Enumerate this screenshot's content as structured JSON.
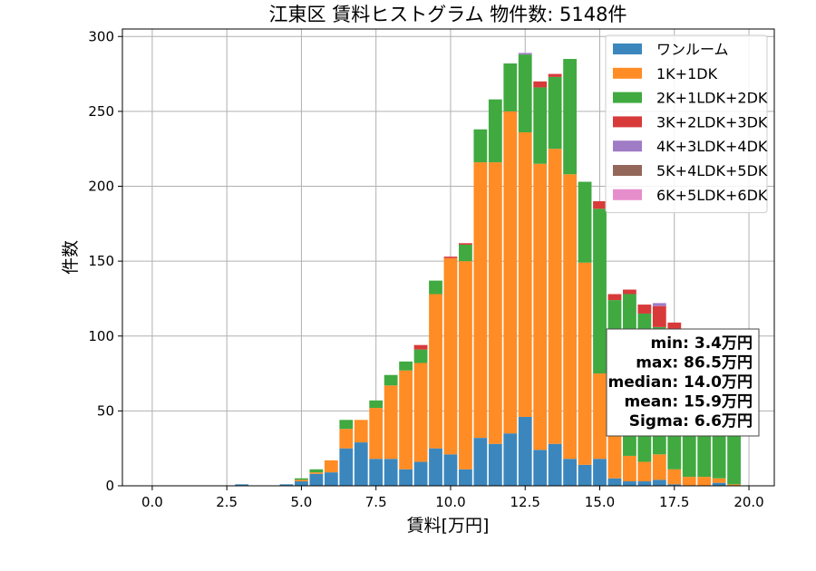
{
  "chart_data": {
    "type": "bar",
    "stacked": true,
    "title": "江東区 賃料ヒストグラム 物件数: 5148件",
    "xlabel": "賃料[万円]",
    "ylabel": "件数",
    "xlim": [
      -1.0,
      20.85
    ],
    "ylim": [
      0,
      305
    ],
    "xticks": [
      "0.0",
      "2.5",
      "5.0",
      "7.5",
      "10.0",
      "12.5",
      "15.0",
      "17.5",
      "20.0"
    ],
    "xtick_values": [
      0,
      2.5,
      5,
      7.5,
      10,
      12.5,
      15,
      17.5,
      20
    ],
    "yticks": [
      "0",
      "50",
      "100",
      "150",
      "200",
      "250",
      "300"
    ],
    "ytick_values": [
      0,
      50,
      100,
      150,
      200,
      250,
      300
    ],
    "grid": true,
    "legend_position": "top-right",
    "bin_width": 0.5,
    "x": [
      3.0,
      4.5,
      5.0,
      5.5,
      6.0,
      6.5,
      7.0,
      7.5,
      8.0,
      8.5,
      9.0,
      9.5,
      10.0,
      10.5,
      11.0,
      11.5,
      12.0,
      12.5,
      13.0,
      13.5,
      14.0,
      14.5,
      15.0,
      15.5,
      16.0,
      16.5,
      17.0,
      17.5,
      18.0,
      18.5,
      19.0,
      19.5
    ],
    "series": [
      {
        "name": "ワンルーム",
        "color": "#3b87bd",
        "values": [
          1,
          1,
          3,
          8,
          9,
          25,
          29,
          18,
          18,
          11,
          16,
          25,
          21,
          11,
          32,
          28,
          35,
          46,
          24,
          28,
          18,
          14,
          18,
          5,
          3,
          3,
          4,
          1,
          0,
          0,
          2,
          0
        ]
      },
      {
        "name": "1K+1DK",
        "color": "#ff8c25",
        "values": [
          0,
          0,
          1,
          1,
          8,
          13,
          15,
          34,
          49,
          66,
          66,
          103,
          131,
          139,
          184,
          188,
          215,
          190,
          191,
          197,
          190,
          135,
          57,
          32,
          17,
          13,
          17,
          10,
          6,
          6,
          3,
          1
        ]
      },
      {
        "name": "2K+1LDK+2DK",
        "color": "#40aa40",
        "values": [
          0,
          0,
          1,
          2,
          0,
          6,
          0,
          5,
          7,
          6,
          9,
          9,
          0,
          11,
          22,
          42,
          32,
          52,
          51,
          48,
          77,
          54,
          110,
          87,
          108,
          99,
          85,
          92,
          86,
          86,
          83,
          76
        ]
      },
      {
        "name": "3K+2LDK+3DK",
        "color": "#d83a3a",
        "values": [
          0,
          0,
          0,
          0,
          0,
          0,
          0,
          0,
          0,
          0,
          3,
          0,
          1,
          1,
          0,
          0,
          0,
          0,
          4,
          2,
          0,
          0,
          5,
          4,
          3,
          6,
          14,
          6,
          7,
          5,
          4,
          5
        ]
      },
      {
        "name": "4K+3LDK+4DK",
        "color": "#a07cc6",
        "values": [
          0,
          0,
          0,
          0,
          0,
          0,
          0,
          0,
          0,
          0,
          0,
          0,
          0,
          0,
          0,
          0,
          0,
          1,
          0,
          0,
          0,
          0,
          0,
          0,
          0,
          0,
          2,
          0,
          0,
          0,
          0,
          0
        ]
      },
      {
        "name": "5K+4LDK+5DK",
        "color": "#93675a",
        "values": [
          0,
          0,
          0,
          0,
          0,
          0,
          0,
          0,
          0,
          0,
          0,
          0,
          0,
          0,
          0,
          0,
          0,
          0,
          0,
          0,
          0,
          0,
          0,
          0,
          0,
          0,
          0,
          0,
          0,
          0,
          0,
          0
        ]
      },
      {
        "name": "6K+5LDK+6DK",
        "color": "#e68dcc",
        "values": [
          0,
          0,
          0,
          0,
          0,
          0,
          0,
          0,
          0,
          0,
          0,
          0,
          0,
          0,
          0,
          0,
          0,
          0,
          0,
          0,
          0,
          0,
          0,
          0,
          0,
          0,
          0,
          0,
          0,
          0,
          0,
          0
        ]
      }
    ],
    "annotations": [
      "min: 3.4万円",
      "max: 86.5万円",
      "median: 14.0万円",
      "mean: 15.9万円",
      "Sigma: 6.6万円"
    ]
  }
}
